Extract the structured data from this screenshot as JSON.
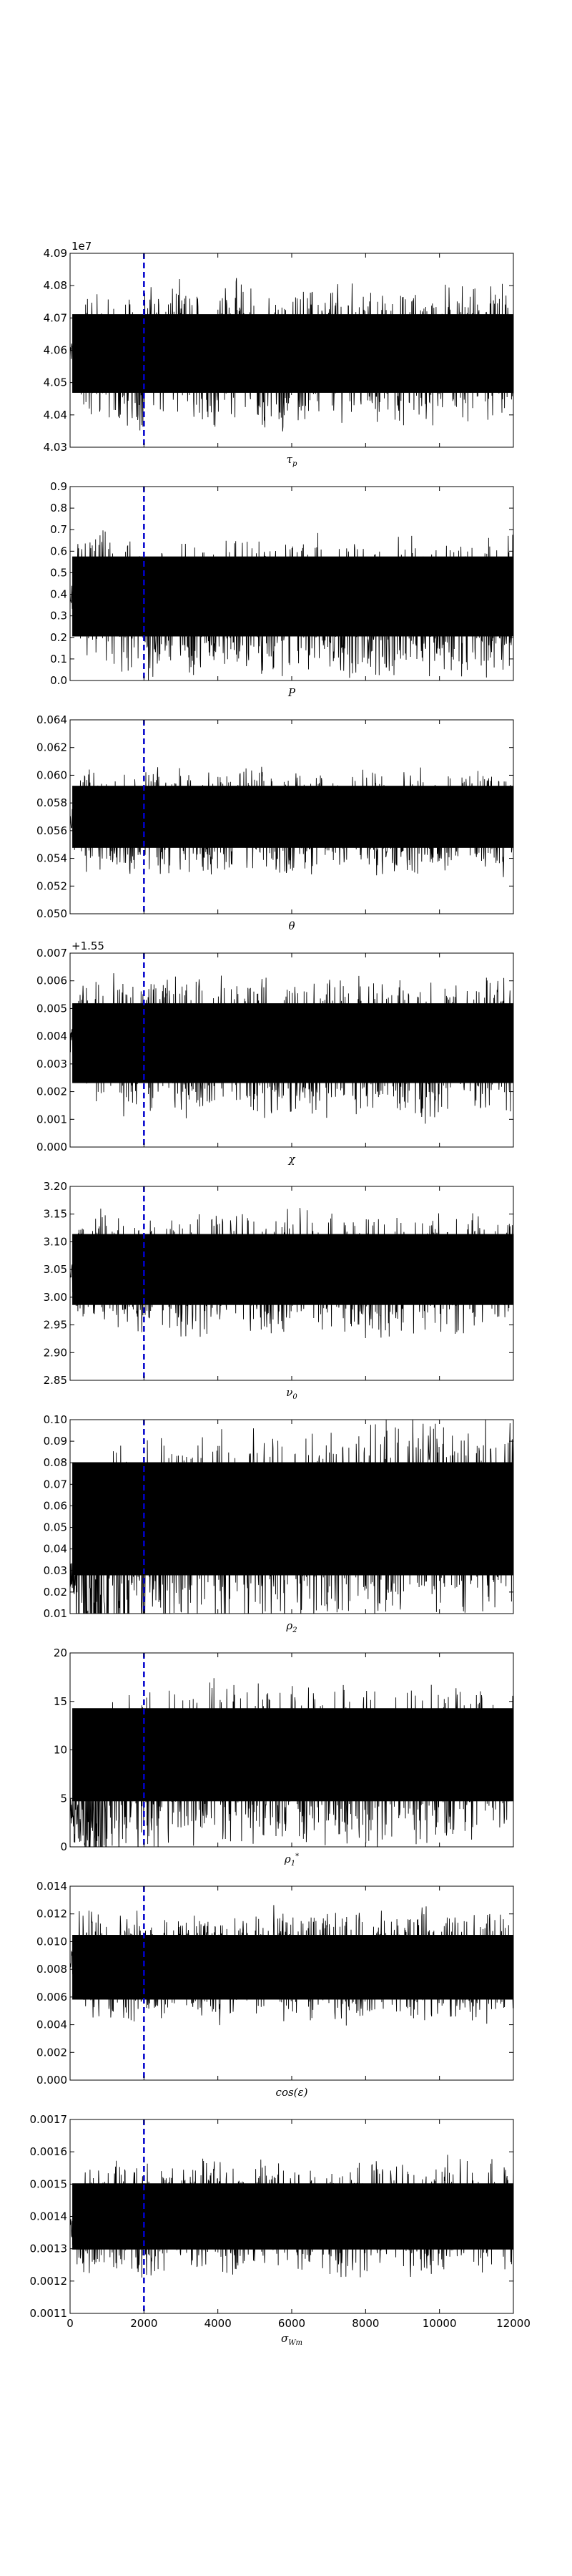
{
  "figure": {
    "burnin_x": 2000,
    "burnin_color": "#0000cc",
    "trace_color": "#000000"
  },
  "chart_data": [
    {
      "type": "line",
      "xlabel": "τ_p",
      "offset_text": "1e7",
      "xlim": [
        0,
        12000
      ],
      "ylim": [
        40300000,
        40900000
      ],
      "yticks": [
        40300000,
        40400000,
        40500000,
        40600000,
        40700000,
        40800000,
        40900000
      ],
      "ytick_labels": [
        "4.03",
        "4.04",
        "4.05",
        "4.06",
        "4.07",
        "4.08",
        "4.09"
      ],
      "series": [
        {
          "values": [
            40590000,
            40560000,
            40600000,
            40580000,
            40610000,
            40550000,
            40590000,
            40600000,
            40570000,
            40580000,
            40600000,
            40590000
          ],
          "band_low": 40400000,
          "band_high": 40780000
        }
      ]
    },
    {
      "type": "line",
      "xlabel": "P",
      "xlim": [
        0,
        12000
      ],
      "ylim": [
        0.0,
        0.9
      ],
      "yticks": [
        0.0,
        0.1,
        0.2,
        0.3,
        0.4,
        0.5,
        0.6,
        0.7,
        0.8,
        0.9
      ],
      "ytick_labels": [
        "0.0",
        "0.1",
        "0.2",
        "0.3",
        "0.4",
        "0.5",
        "0.6",
        "0.7",
        "0.8",
        "0.9"
      ],
      "series": [
        {
          "values": [
            0.38,
            0.33,
            0.32,
            0.34,
            0.35,
            0.33,
            0.36,
            0.34,
            0.33,
            0.35,
            0.34,
            0.35
          ],
          "band_low": 0.1,
          "band_high": 0.68
        }
      ]
    },
    {
      "type": "line",
      "xlabel": "θ",
      "xlim": [
        0,
        12000
      ],
      "ylim": [
        0.05,
        0.064
      ],
      "yticks": [
        0.05,
        0.052,
        0.054,
        0.056,
        0.058,
        0.06,
        0.062,
        0.064
      ],
      "ytick_labels": [
        "0.050",
        "0.052",
        "0.054",
        "0.056",
        "0.058",
        "0.060",
        "0.062",
        "0.064"
      ],
      "series": [
        {
          "values": [
            0.0568,
            0.0566,
            0.0569,
            0.0567,
            0.0568,
            0.0566,
            0.0567,
            0.0568,
            0.0566,
            0.0567,
            0.0568,
            0.0567
          ],
          "band_low": 0.0535,
          "band_high": 0.0605
        }
      ]
    },
    {
      "type": "line",
      "xlabel": "χ",
      "offset_text": "+1.55",
      "xlim": [
        0,
        12000
      ],
      "ylim": [
        0.0,
        0.007
      ],
      "yticks": [
        0.0,
        0.001,
        0.002,
        0.003,
        0.004,
        0.005,
        0.006,
        0.007
      ],
      "ytick_labels": [
        "0.000",
        "0.001",
        "0.002",
        "0.003",
        "0.004",
        "0.005",
        "0.006",
        "0.007"
      ],
      "series": [
        {
          "values": [
            0.0038,
            0.0036,
            0.0037,
            0.0036,
            0.0037,
            0.0035,
            0.0036,
            0.0037,
            0.0036,
            0.0035,
            0.0036,
            0.0036
          ],
          "band_low": 0.0015,
          "band_high": 0.006
        }
      ]
    },
    {
      "type": "line",
      "xlabel": "ν_0",
      "xlim": [
        0,
        12000
      ],
      "ylim": [
        2.85,
        3.2
      ],
      "yticks": [
        2.85,
        2.9,
        2.95,
        3.0,
        3.05,
        3.1,
        3.15,
        3.2
      ],
      "ytick_labels": [
        "2.85",
        "2.90",
        "2.95",
        "3.00",
        "3.05",
        "3.10",
        "3.15",
        "3.20"
      ],
      "series": [
        {
          "values": [
            3.05,
            3.04,
            3.05,
            3.04,
            3.05,
            3.04,
            3.05,
            3.04,
            3.04,
            3.05,
            3.04,
            3.05
          ],
          "band_low": 2.95,
          "band_high": 3.15
        }
      ]
    },
    {
      "type": "line",
      "xlabel": "ρ_2",
      "xlim": [
        0,
        12000
      ],
      "ylim": [
        0.01,
        0.1
      ],
      "yticks": [
        0.01,
        0.02,
        0.03,
        0.04,
        0.05,
        0.06,
        0.07,
        0.08,
        0.09,
        0.1
      ],
      "ytick_labels": [
        "0.01",
        "0.02",
        "0.03",
        "0.04",
        "0.05",
        "0.06",
        "0.07",
        "0.08",
        "0.09",
        "0.10"
      ],
      "series": [
        {
          "values": [
            0.025,
            0.04,
            0.045,
            0.048,
            0.05,
            0.049,
            0.05,
            0.052,
            0.053,
            0.055,
            0.055,
            0.056
          ],
          "band_low": 0.013,
          "band_high": 0.095
        }
      ]
    },
    {
      "type": "line",
      "xlabel": "ρ_1^*",
      "xlim": [
        0,
        12000
      ],
      "ylim": [
        0,
        20
      ],
      "yticks": [
        0,
        5,
        10,
        15,
        20
      ],
      "ytick_labels": [
        "0",
        "5",
        "10",
        "15",
        "20"
      ],
      "series": [
        {
          "values": [
            4,
            7,
            8,
            8.5,
            8.5,
            8,
            8.5,
            8,
            8.5,
            8.5,
            9,
            9
          ],
          "band_low": 2,
          "band_high": 17
        }
      ]
    },
    {
      "type": "line",
      "xlabel": "cos(ε)",
      "xlim": [
        0,
        12000
      ],
      "ylim": [
        0.0,
        0.014
      ],
      "yticks": [
        0.0,
        0.002,
        0.004,
        0.006,
        0.008,
        0.01,
        0.012,
        0.014
      ],
      "ytick_labels": [
        "0.000",
        "0.002",
        "0.004",
        "0.006",
        "0.008",
        "0.010",
        "0.012",
        "0.014"
      ],
      "series": [
        {
          "values": [
            0.0085,
            0.0082,
            0.0083,
            0.0081,
            0.0082,
            0.0083,
            0.0082,
            0.0081,
            0.0082,
            0.0083,
            0.0082,
            0.0082
          ],
          "band_low": 0.0045,
          "band_high": 0.0118
        }
      ]
    },
    {
      "type": "line",
      "xlabel": "σ_{W_m}",
      "xlim": [
        0,
        12000
      ],
      "ylim": [
        0.0011,
        0.0017
      ],
      "yticks": [
        0.0011,
        0.0012,
        0.0013,
        0.0014,
        0.0015,
        0.0016,
        0.0017
      ],
      "ytick_labels": [
        "0.0011",
        "0.0012",
        "0.0013",
        "0.0014",
        "0.0015",
        "0.0016",
        "0.0017"
      ],
      "xticks": [
        0,
        2000,
        4000,
        6000,
        8000,
        10000,
        12000
      ],
      "xtick_labels": [
        "0",
        "2000",
        "4000",
        "6000",
        "8000",
        "10000",
        "12000"
      ],
      "series": [
        {
          "values": [
            0.00138,
            0.0014,
            0.00139,
            0.0014,
            0.00139,
            0.0014,
            0.0014,
            0.00139,
            0.0014,
            0.00139,
            0.0014,
            0.0014
          ],
          "band_low": 0.00124,
          "band_high": 0.00156
        }
      ]
    }
  ]
}
